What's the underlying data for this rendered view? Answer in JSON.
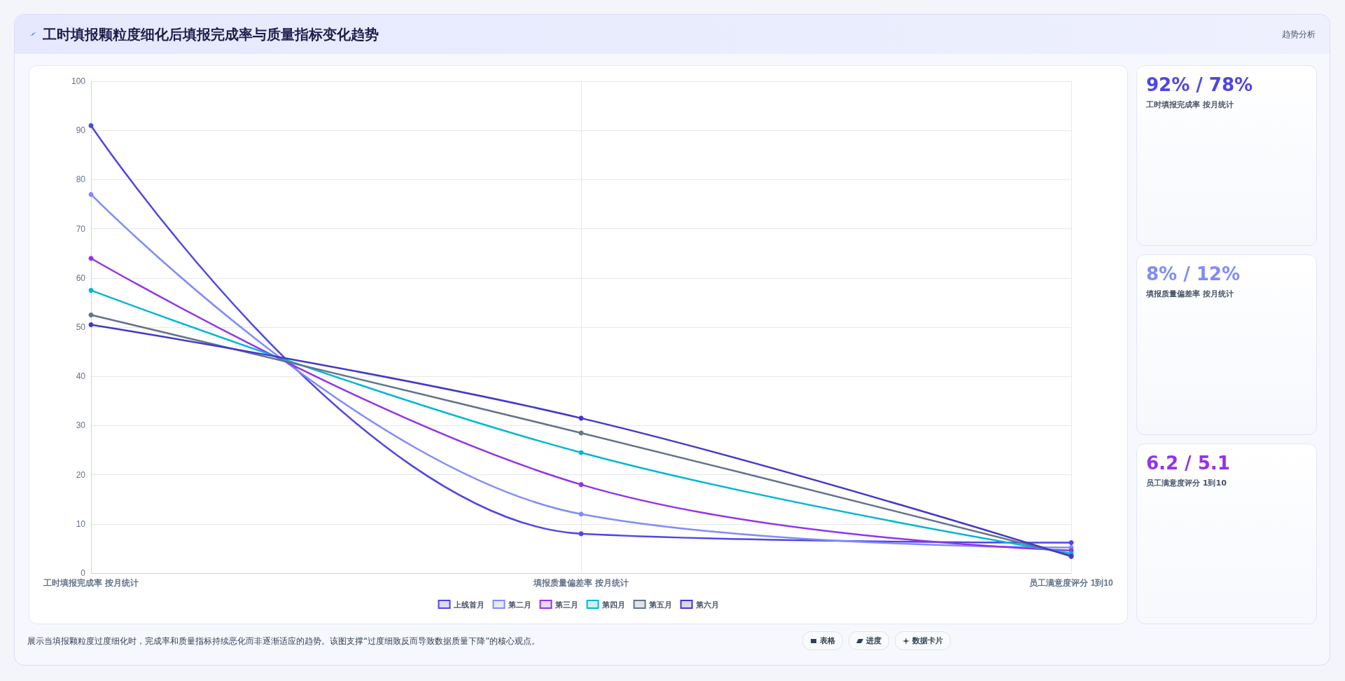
{
  "chart_data": [
    {
      "type": "line",
      "title": "工时填报颗粒度细化后填报完成率与质量指标变化趋势",
      "categories": [
        "工时填报完成率 按月统计",
        "填报质量偏差率 按月统计",
        "员工满意度评分 1到10"
      ],
      "series": [
        {
          "name": "上线首月",
          "color": "#4f46e5",
          "values": [
            91,
            8,
            6.2
          ]
        },
        {
          "name": "第二月",
          "color": "#818cf8",
          "values": [
            77,
            12,
            5.2
          ]
        },
        {
          "name": "第三月",
          "color": "#9333ea",
          "values": [
            64,
            18,
            4.6
          ]
        },
        {
          "name": "第四月",
          "color": "#06b6d4",
          "values": [
            57.5,
            24.5,
            4
          ]
        },
        {
          "name": "第五月",
          "color": "#64748b",
          "values": [
            52.5,
            28.5,
            3.6
          ]
        },
        {
          "name": "第六月",
          "color": "#4338ca",
          "values": [
            50.5,
            31.5,
            3.4
          ]
        }
      ],
      "ylim": [
        0,
        100
      ],
      "yticks": [
        0,
        10,
        20,
        30,
        40,
        50,
        60,
        70,
        80,
        90,
        100
      ],
      "grid": true,
      "legend": "bottom",
      "marker": "circle",
      "line_style": "solid",
      "annotations": [
        "趋势分析",
        "展示当填报颗粒度过度细化时，完成率和质量指标持续恶化而非逐渐适应的趋势。该图支撑“过度细致反而导致数据质量下降”的核心观点。",
        "表格",
        "进度",
        "数据卡片"
      ]
    },
    {
      "type": "other",
      "title": "92% / 78%",
      "subtitle": "工时填报完成率 按月统计"
    },
    {
      "type": "other",
      "title": "8% / 12%",
      "subtitle": "填报质量偏差率 按月统计"
    },
    {
      "type": "other",
      "title": "6.2 / 5.1",
      "subtitle": "员工满意度评分 1到10"
    }
  ]
}
